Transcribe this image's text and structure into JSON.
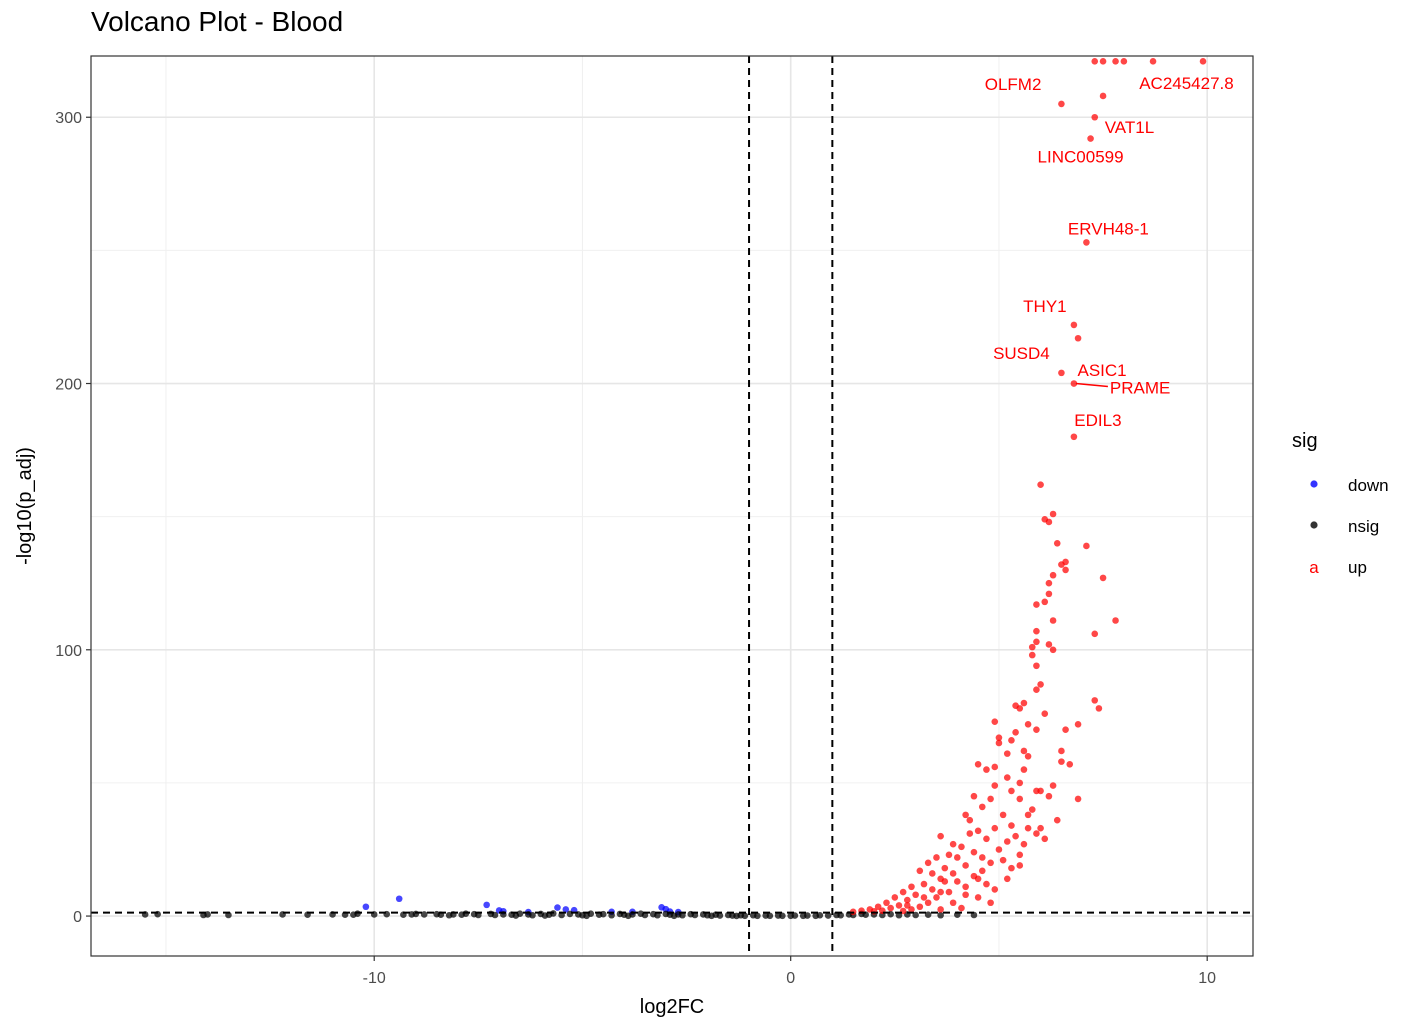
{
  "chart_data": {
    "type": "scatter",
    "title": "Volcano Plot - Blood",
    "xlabel": "log2FC",
    "ylabel": "-log10(p_adj)",
    "xlim": [
      -16.8,
      11.1
    ],
    "ylim": [
      -15,
      323
    ],
    "x_ticks": [
      -10,
      0,
      10
    ],
    "y_ticks": [
      0,
      100,
      200,
      300
    ],
    "grid": true,
    "thresholds": {
      "log2fc": [
        -1,
        1
      ],
      "neg_log10_padj": 1.3
    },
    "legend": {
      "title": "sig",
      "placement": "right",
      "entries": [
        {
          "label": "down",
          "color": "#0000ff"
        },
        {
          "label": "nsig",
          "color": "#000000"
        },
        {
          "label": "up",
          "color": "#ff0000"
        }
      ]
    },
    "labeled_genes": [
      {
        "label": "AC245427.8",
        "x": 8.8,
        "y": 320
      },
      {
        "label": "OLFM2",
        "x": 6.5,
        "y": 305
      },
      {
        "label": "VAT1L",
        "x": 7.3,
        "y": 300
      },
      {
        "label": "LINC00599",
        "x": 7.2,
        "y": 292
      },
      {
        "label": "ERVH48-1",
        "x": 7.1,
        "y": 253
      },
      {
        "label": "THY1",
        "x": 6.8,
        "y": 222
      },
      {
        "label": "ASIC1",
        "x": 6.9,
        "y": 217
      },
      {
        "label": "SUSD4",
        "x": 6.5,
        "y": 204
      },
      {
        "label": "PRAME",
        "x": 6.8,
        "y": 200
      },
      {
        "label": "EDIL3",
        "x": 6.8,
        "y": 180
      }
    ],
    "series": [
      {
        "name": "down",
        "color": "#0000ff",
        "points": [
          [
            -10.2,
            3.5
          ],
          [
            -9.4,
            6.5
          ],
          [
            -7.3,
            4.2
          ],
          [
            -6.9,
            1.8
          ],
          [
            -6.3,
            1.5
          ],
          [
            -5.6,
            3.2
          ],
          [
            -5.4,
            2.5
          ],
          [
            -5.2,
            2.2
          ],
          [
            -4.3,
            1.6
          ],
          [
            -3.8,
            1.6
          ],
          [
            -3.1,
            3.3
          ],
          [
            -3.0,
            2.6
          ],
          [
            -2.9,
            1.7
          ],
          [
            -2.7,
            1.5
          ],
          [
            -7.0,
            2.1
          ]
        ]
      },
      {
        "name": "nsig",
        "color": "#000000",
        "points": [
          [
            -15.5,
            0.6
          ],
          [
            -15.2,
            0.7
          ],
          [
            -14.1,
            0.4
          ],
          [
            -14.0,
            0.6
          ],
          [
            -11.6,
            0.5
          ],
          [
            -11.0,
            0.6
          ],
          [
            -10.5,
            0.5
          ],
          [
            -10.4,
            0.9
          ],
          [
            -10.0,
            0.6
          ],
          [
            -9.7,
            0.7
          ],
          [
            -9.3,
            0.5
          ],
          [
            -9.1,
            0.6
          ],
          [
            -8.8,
            0.6
          ],
          [
            -8.5,
            0.7
          ],
          [
            -8.4,
            0.5
          ],
          [
            -8.1,
            0.6
          ],
          [
            -7.9,
            0.5
          ],
          [
            -7.8,
            0.9
          ],
          [
            -7.6,
            0.7
          ],
          [
            -7.5,
            0.4
          ],
          [
            -7.2,
            0.8
          ],
          [
            -7.1,
            0.4
          ],
          [
            -6.9,
            0.6
          ],
          [
            -6.7,
            0.5
          ],
          [
            -6.5,
            0.9
          ],
          [
            -6.3,
            0.6
          ],
          [
            -6.2,
            0.3
          ],
          [
            -6.0,
            0.8
          ],
          [
            -5.8,
            0.5
          ],
          [
            -5.7,
            1.0
          ],
          [
            -5.5,
            0.4
          ],
          [
            -5.3,
            0.8
          ],
          [
            -5.1,
            0.6
          ],
          [
            -5.0,
            0.3
          ],
          [
            -4.8,
            0.9
          ],
          [
            -4.6,
            0.5
          ],
          [
            -4.5,
            0.7
          ],
          [
            -4.3,
            0.3
          ],
          [
            -4.1,
            0.8
          ],
          [
            -4.0,
            0.5
          ],
          [
            -3.8,
            0.6
          ],
          [
            -3.6,
            0.9
          ],
          [
            -3.5,
            0.4
          ],
          [
            -3.3,
            0.7
          ],
          [
            -3.2,
            0.3
          ],
          [
            -3.0,
            0.8
          ],
          [
            -2.9,
            0.5
          ],
          [
            -2.7,
            0.6
          ],
          [
            -2.6,
            0.3
          ],
          [
            -2.4,
            0.7
          ],
          [
            -2.3,
            0.4
          ],
          [
            -2.1,
            0.6
          ],
          [
            -2.0,
            0.3
          ],
          [
            -1.8,
            0.5
          ],
          [
            -1.7,
            0.2
          ],
          [
            -1.5,
            0.4
          ],
          [
            -1.4,
            0.2
          ],
          [
            -1.2,
            0.3
          ],
          [
            -1.1,
            0.1
          ],
          [
            -0.9,
            0.3
          ],
          [
            -0.8,
            0.1
          ],
          [
            -0.6,
            0.2
          ],
          [
            -0.5,
            0.1
          ],
          [
            -0.3,
            0.2
          ],
          [
            -0.2,
            0.1
          ],
          [
            0.0,
            0.1
          ],
          [
            0.1,
            0.2
          ],
          [
            0.3,
            0.1
          ],
          [
            0.4,
            0.2
          ],
          [
            0.6,
            0.1
          ],
          [
            0.7,
            0.3
          ],
          [
            0.9,
            0.2
          ],
          [
            1.1,
            0.4
          ],
          [
            1.2,
            0.3
          ],
          [
            1.4,
            0.6
          ],
          [
            1.5,
            0.4
          ],
          [
            1.7,
            0.8
          ],
          [
            1.8,
            0.5
          ],
          [
            2.0,
            0.6
          ],
          [
            2.2,
            0.4
          ],
          [
            2.4,
            0.7
          ],
          [
            2.6,
            0.3
          ],
          [
            2.8,
            0.6
          ],
          [
            3.0,
            0.4
          ],
          [
            3.3,
            0.5
          ],
          [
            3.6,
            0.3
          ],
          [
            4.0,
            0.5
          ],
          [
            4.4,
            0.4
          ],
          [
            -10.7,
            0.5
          ],
          [
            -12.2,
            0.6
          ],
          [
            -13.5,
            0.4
          ],
          [
            -9.0,
            0.8
          ],
          [
            -8.2,
            0.3
          ],
          [
            -6.6,
            0.2
          ],
          [
            -5.9,
            0.2
          ],
          [
            -4.9,
            0.1
          ],
          [
            -3.9,
            0.1
          ],
          [
            -2.8,
            0.1
          ],
          [
            -1.9,
            0.1
          ],
          [
            -1.3,
            0.05
          ]
        ]
      },
      {
        "name": "up",
        "color": "#ff0000",
        "points": [
          [
            9.9,
            321
          ],
          [
            8.7,
            321
          ],
          [
            8.0,
            321
          ],
          [
            7.8,
            321
          ],
          [
            7.5,
            321
          ],
          [
            7.3,
            321
          ],
          [
            7.5,
            308
          ],
          [
            6.5,
            305
          ],
          [
            7.3,
            300
          ],
          [
            7.2,
            292
          ],
          [
            7.1,
            253
          ],
          [
            6.8,
            222
          ],
          [
            6.9,
            217
          ],
          [
            6.5,
            204
          ],
          [
            6.8,
            200
          ],
          [
            6.8,
            180
          ],
          [
            6.0,
            162
          ],
          [
            6.3,
            151
          ],
          [
            6.2,
            148
          ],
          [
            6.1,
            149
          ],
          [
            7.1,
            139
          ],
          [
            6.4,
            140
          ],
          [
            6.6,
            130
          ],
          [
            6.3,
            128
          ],
          [
            6.2,
            125
          ],
          [
            6.6,
            133
          ],
          [
            6.5,
            132
          ],
          [
            7.5,
            127
          ],
          [
            6.2,
            121
          ],
          [
            6.1,
            118
          ],
          [
            5.9,
            117
          ],
          [
            7.8,
            111
          ],
          [
            6.3,
            111
          ],
          [
            7.3,
            106
          ],
          [
            5.9,
            107
          ],
          [
            5.9,
            103
          ],
          [
            6.2,
            102
          ],
          [
            5.8,
            101
          ],
          [
            6.3,
            100
          ],
          [
            5.8,
            98
          ],
          [
            5.9,
            94
          ],
          [
            5.9,
            85
          ],
          [
            6.0,
            87
          ],
          [
            5.6,
            80
          ],
          [
            5.5,
            78
          ],
          [
            5.4,
            79
          ],
          [
            5.7,
            72
          ],
          [
            6.1,
            76
          ],
          [
            7.3,
            81
          ],
          [
            7.4,
            78
          ],
          [
            6.9,
            72
          ],
          [
            6.6,
            70
          ],
          [
            5.9,
            70
          ],
          [
            4.9,
            73
          ],
          [
            5.4,
            69
          ],
          [
            5.0,
            67
          ],
          [
            5.3,
            66
          ],
          [
            5.6,
            62
          ],
          [
            5.0,
            65
          ],
          [
            5.2,
            61
          ],
          [
            6.5,
            62
          ],
          [
            5.7,
            60
          ],
          [
            6.7,
            57
          ],
          [
            6.5,
            58
          ],
          [
            4.9,
            56
          ],
          [
            5.6,
            55
          ],
          [
            4.5,
            57
          ],
          [
            4.7,
            55
          ],
          [
            5.5,
            50
          ],
          [
            5.2,
            52
          ],
          [
            4.9,
            49
          ],
          [
            5.3,
            47
          ],
          [
            6.0,
            47
          ],
          [
            5.9,
            47
          ],
          [
            6.3,
            49
          ],
          [
            4.8,
            44
          ],
          [
            4.4,
            45
          ],
          [
            5.5,
            44
          ],
          [
            4.6,
            41
          ],
          [
            6.9,
            44
          ],
          [
            4.2,
            38
          ],
          [
            5.1,
            38
          ],
          [
            4.3,
            36
          ],
          [
            5.3,
            34
          ],
          [
            4.9,
            33
          ],
          [
            5.7,
            33
          ],
          [
            6.0,
            33
          ],
          [
            4.5,
            32
          ],
          [
            5.4,
            30
          ],
          [
            5.2,
            28
          ],
          [
            5.6,
            27
          ],
          [
            3.9,
            27
          ],
          [
            3.6,
            30
          ],
          [
            4.1,
            26
          ],
          [
            4.4,
            24
          ],
          [
            3.8,
            23
          ],
          [
            4.6,
            22
          ],
          [
            5.1,
            21
          ],
          [
            3.5,
            22
          ],
          [
            4.2,
            19
          ],
          [
            3.7,
            18
          ],
          [
            3.3,
            20
          ],
          [
            3.9,
            16
          ],
          [
            4.4,
            15
          ],
          [
            3.1,
            17
          ],
          [
            3.6,
            14
          ],
          [
            4.0,
            13
          ],
          [
            4.7,
            12
          ],
          [
            3.2,
            12
          ],
          [
            3.4,
            10
          ],
          [
            2.9,
            11
          ],
          [
            3.8,
            9
          ],
          [
            4.2,
            8
          ],
          [
            2.7,
            9
          ],
          [
            3.0,
            8
          ],
          [
            3.5,
            7
          ],
          [
            4.5,
            7
          ],
          [
            2.5,
            7
          ],
          [
            2.8,
            6
          ],
          [
            3.3,
            5
          ],
          [
            3.9,
            5
          ],
          [
            2.3,
            5
          ],
          [
            2.6,
            4
          ],
          [
            3.1,
            3.5
          ],
          [
            4.1,
            3
          ],
          [
            2.1,
            3.5
          ],
          [
            2.4,
            3
          ],
          [
            2.9,
            2.5
          ],
          [
            3.6,
            2.5
          ],
          [
            1.9,
            2.5
          ],
          [
            2.2,
            2
          ],
          [
            2.7,
            1.9
          ],
          [
            1.7,
            2
          ],
          [
            2.0,
            1.8
          ],
          [
            1.5,
            1.6
          ],
          [
            4.8,
            5
          ],
          [
            4.9,
            10
          ],
          [
            5.2,
            14
          ],
          [
            5.5,
            19
          ],
          [
            5.0,
            25
          ],
          [
            4.7,
            29
          ],
          [
            4.3,
            31
          ],
          [
            4.0,
            22
          ],
          [
            3.7,
            13
          ],
          [
            3.4,
            16
          ],
          [
            4.6,
            17
          ],
          [
            5.8,
            40
          ],
          [
            6.2,
            45
          ],
          [
            5.7,
            38
          ],
          [
            6.4,
            36
          ],
          [
            5.9,
            31
          ],
          [
            6.1,
            29
          ],
          [
            5.5,
            23
          ],
          [
            5.3,
            18
          ],
          [
            4.8,
            20
          ],
          [
            4.5,
            14
          ],
          [
            4.2,
            11
          ],
          [
            3.6,
            9
          ],
          [
            3.2,
            7
          ],
          [
            2.8,
            4
          ]
        ]
      }
    ]
  }
}
